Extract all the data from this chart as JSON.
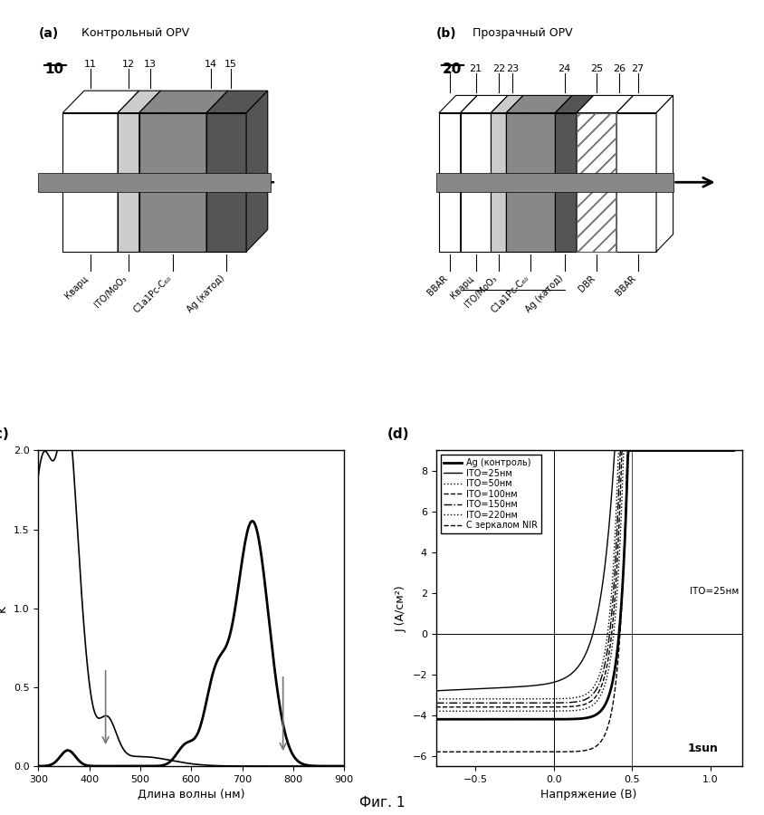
{
  "title": "Фиг. 1",
  "panel_a_label": "(a)",
  "panel_a_title": "Контрольный OPV",
  "panel_a_number": "10",
  "panel_a_layer_labels": [
    "11",
    "12",
    "13",
    "14",
    "15"
  ],
  "panel_a_xlabels": [
    "Кварц",
    "ITO/MoO₃",
    "C1a1Pc-C₆₀",
    "Ag (катод)"
  ],
  "panel_b_label": "(b)",
  "panel_b_title": "Прозрачный OPV",
  "panel_b_number": "20",
  "panel_b_layer_labels": [
    "27",
    "21",
    "22",
    "23",
    "24",
    "25",
    "26",
    "27"
  ],
  "panel_b_xlabels": [
    "BBAR",
    "Кварц",
    "ITO/MoO₃",
    "C1a1Pc-C₆₀",
    "Ag (катод)",
    "DBR",
    "BBAR"
  ],
  "panel_c_label": "(c)",
  "panel_c_xlabel": "Длина волны (нм)",
  "panel_c_ylabel": "k",
  "panel_c_xlim": [
    300,
    900
  ],
  "panel_c_ylim": [
    0.0,
    2.0
  ],
  "panel_c_xticks": [
    300,
    400,
    500,
    600,
    700,
    800,
    900
  ],
  "panel_c_yticks": [
    0.0,
    0.5,
    1.0,
    1.5,
    2.0
  ],
  "panel_d_label": "(d)",
  "panel_d_xlabel": "Напряжение (В)",
  "panel_d_ylabel": "J (А/см²)",
  "panel_d_xlim": [
    -0.75,
    1.2
  ],
  "panel_d_ylim": [
    -6.5,
    9.0
  ],
  "panel_d_xticks": [
    -0.5,
    0.0,
    0.5,
    1.0
  ],
  "panel_d_yticks": [
    -6,
    -4,
    -2,
    0,
    2,
    4,
    6,
    8
  ],
  "panel_d_legend": [
    "Ag (контроль)",
    "ITO=25нм",
    "ITO=50нм",
    "ITO=100нм",
    "ITO=150нм",
    "ITO=220нм",
    "С зеркалом NIR"
  ],
  "panel_d_annotation": "ITO=25нм",
  "panel_d_sun_label": "1sun"
}
